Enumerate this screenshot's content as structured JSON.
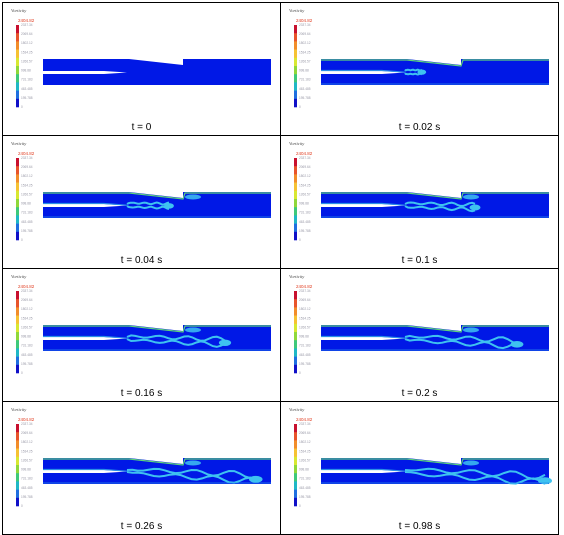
{
  "legend": {
    "title": "Vorticity",
    "max_value": "2404.82",
    "ticks": [
      "2337.34",
      "2069.64",
      "1802.12",
      "1534.25",
      "1266.57",
      "998.88",
      "731.183",
      "463.485",
      "195.788",
      "0"
    ],
    "colors": [
      "#c8102e",
      "#e8542b",
      "#f28d2a",
      "#f6c233",
      "#d8e832",
      "#8fd83a",
      "#3ec97a",
      "#1fb8c6",
      "#1f6fe0",
      "#1010c8"
    ]
  },
  "flow_colors": {
    "background": "#0018e6",
    "vortex": "#3ec2f0",
    "shear": "#2a8fe8",
    "edge": "#5ed37a"
  },
  "panels": [
    {
      "caption": "t = 0"
    },
    {
      "caption": "t = 0.02 s"
    },
    {
      "caption": "t = 0.04 s"
    },
    {
      "caption": "t = 0.1 s"
    },
    {
      "caption": "t = 0.16 s"
    },
    {
      "caption": "t = 0.2 s"
    },
    {
      "caption": "t = 0.26 s"
    },
    {
      "caption": "t = 0.98 s"
    }
  ]
}
